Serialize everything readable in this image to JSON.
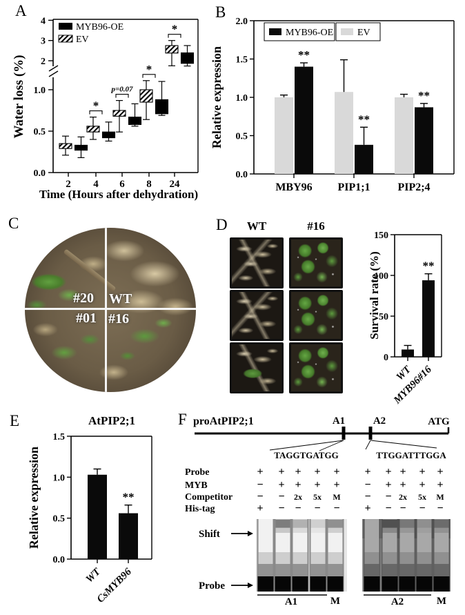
{
  "panel_labels": {
    "A": "A",
    "B": "B",
    "C": "C",
    "D": "D",
    "E": "E",
    "F": "F"
  },
  "colors": {
    "bar_black": "#0a0a0a",
    "bar_gray": "#d9d9d9"
  },
  "chart_data": [
    {
      "id": "water-loss",
      "panel": "A",
      "type": "box",
      "xlabel": "Time (Hours after dehydration)",
      "ylabel": "Water loss (%)",
      "categories": [
        "2",
        "4",
        "6",
        "8",
        "24"
      ],
      "axis_break": {
        "lower_ticks": [
          "0.0",
          "0.5",
          "1.0"
        ],
        "upper_ticks": [
          "2",
          "3",
          "4"
        ],
        "lower_range": [
          0,
          1.2
        ],
        "upper_range": [
          1.7,
          4
        ]
      },
      "series": [
        {
          "name": "EV",
          "fill": "hatch",
          "boxes": [
            [
              0.21,
              0.29,
              0.35,
              0.44
            ],
            [
              0.4,
              0.49,
              0.56,
              0.67
            ],
            [
              0.49,
              0.68,
              0.75,
              0.87
            ],
            [
              0.64,
              0.85,
              1.0,
              1.11
            ],
            [
              1.75,
              2.38,
              2.75,
              3.0
            ]
          ]
        },
        {
          "name": "MYB96-OE",
          "fill": "black",
          "boxes": [
            [
              0.18,
              0.27,
              0.33,
              0.43
            ],
            [
              0.38,
              0.42,
              0.49,
              0.61
            ],
            [
              0.56,
              0.58,
              0.67,
              0.83
            ],
            [
              0.69,
              0.71,
              0.88,
              1.1
            ],
            [
              1.74,
              1.87,
              2.39,
              2.75
            ]
          ]
        }
      ],
      "box_value_order": "min,q1,q3,max",
      "legend": [
        {
          "label": "MYB96-OE",
          "fill": "black"
        },
        {
          "label": "EV",
          "fill": "hatch"
        }
      ],
      "annotations": [
        {
          "category": "4",
          "text": "*"
        },
        {
          "category": "6",
          "text": "p=0.07"
        },
        {
          "category": "8",
          "text": "*"
        },
        {
          "category": "24",
          "text": "*"
        }
      ]
    },
    {
      "id": "relative-expression",
      "panel": "B",
      "type": "bar",
      "ylabel": "Relative expression",
      "categories": [
        "MBY96",
        "PIP1;1",
        "PIP2;4"
      ],
      "yticks": [
        "0.0",
        "0.5",
        "1.0",
        "1.5",
        "2.0"
      ],
      "ylim": [
        0,
        2.0
      ],
      "series": [
        {
          "name": "EV",
          "color": "#d9d9d9",
          "values": [
            1.0,
            1.07,
            1.0
          ],
          "errors": [
            0.03,
            0.42,
            0.04
          ],
          "sig": [
            "",
            "",
            ""
          ]
        },
        {
          "name": "MYB96-OE",
          "color": "#0a0a0a",
          "values": [
            1.4,
            0.38,
            0.87
          ],
          "errors": [
            0.05,
            0.23,
            0.05
          ],
          "sig": [
            "**",
            "**",
            "**"
          ]
        }
      ],
      "legend": [
        {
          "label": "MYB96-OE",
          "color": "#0a0a0a"
        },
        {
          "label": "EV",
          "color": "#d9d9d9"
        }
      ]
    },
    {
      "id": "survival-rate",
      "panel": "D",
      "type": "bar",
      "ylabel": "Survival rate (%)",
      "categories": [
        "WT",
        "MYB96#16"
      ],
      "yticks": [
        "0",
        "50",
        "100",
        "150"
      ],
      "ylim": [
        0,
        150
      ],
      "series": [
        {
          "name": "survival",
          "color": "#0a0a0a",
          "values": [
            9,
            94
          ],
          "errors": [
            5,
            8
          ],
          "sig": [
            "",
            "**"
          ]
        }
      ]
    },
    {
      "id": "atpip21-expression",
      "panel": "E",
      "type": "bar",
      "title": "AtPIP2;1",
      "ylabel": "Relative expression",
      "categories": [
        "WT",
        "CsMYB96"
      ],
      "yticks": [
        "0.0",
        "0.5",
        "1.0",
        "1.5"
      ],
      "ylim": [
        0,
        1.5
      ],
      "series": [
        {
          "name": "expression",
          "color": "#0a0a0a",
          "values": [
            1.03,
            0.56
          ],
          "errors": [
            0.07,
            0.1
          ],
          "sig": [
            "",
            "**"
          ]
        }
      ]
    }
  ],
  "panel_c": {
    "labels": {
      "top_left": "#20",
      "top_right": "WT",
      "bottom_left": "#01",
      "bottom_right": "#16"
    }
  },
  "panel_d": {
    "column_headers": [
      "WT",
      "#16"
    ]
  },
  "panel_f": {
    "promoter_label": "proAtPIP2;1",
    "site1": "A1",
    "site2": "A2",
    "atg": "ATG",
    "sequence1": "TAGGTGATGG",
    "sequence2": "TTGGATTTGGA",
    "table": {
      "rows": [
        "Probe",
        "MYB",
        "Competitor",
        "His-tag"
      ],
      "left": [
        [
          "+",
          "+",
          "+",
          "+",
          "+"
        ],
        [
          "−",
          "+",
          "+",
          "+",
          "+"
        ],
        [
          "−",
          "−",
          "2x",
          "5x",
          "M"
        ],
        [
          "+",
          "−",
          "−",
          "−",
          "−"
        ]
      ],
      "right": [
        [
          "+",
          "+",
          "+",
          "+",
          "+"
        ],
        [
          "−",
          "+",
          "+",
          "+",
          "+"
        ],
        [
          "−",
          "−",
          "2x",
          "5x",
          "M"
        ],
        [
          "+",
          "−",
          "−",
          "−",
          "−"
        ]
      ]
    },
    "gel_labels": {
      "shift": "Shift",
      "probe": "Probe",
      "left_group": "A1",
      "left_last": "M",
      "right_group": "A2",
      "right_last": "M"
    }
  }
}
